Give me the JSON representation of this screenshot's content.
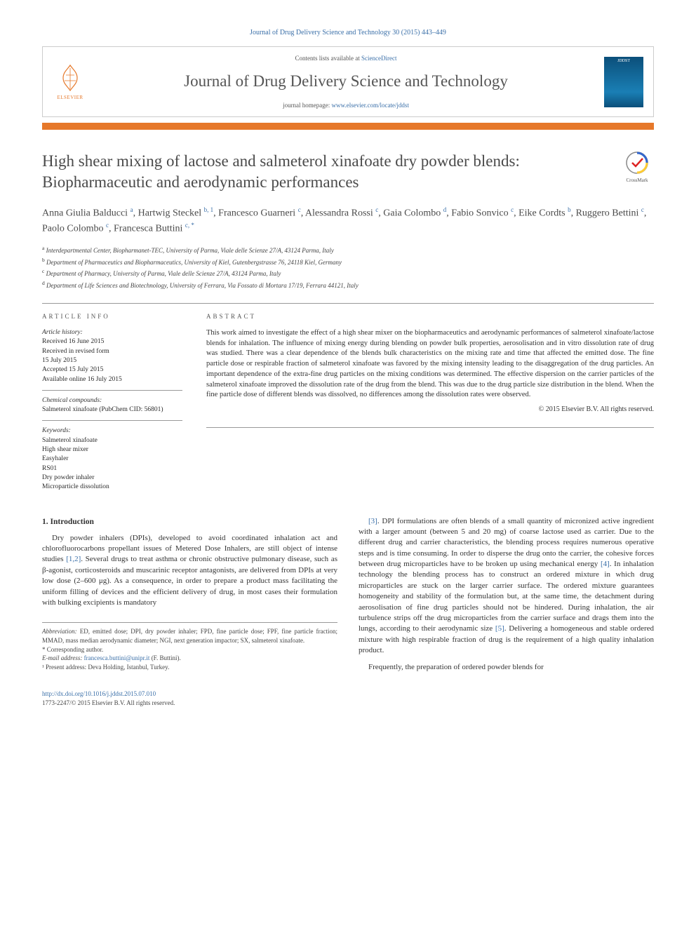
{
  "citation": "Journal of Drug Delivery Science and Technology 30 (2015) 443–449",
  "header": {
    "contents_prefix": "Contents lists available at ",
    "contents_link": "ScienceDirect",
    "journal_title": "Journal of Drug Delivery Science and Technology",
    "homepage_prefix": "journal homepage: ",
    "homepage_url": "www.elsevier.com/locate/jddst",
    "publisher": "ELSEVIER",
    "cover_label": "JDDST"
  },
  "crossmark_label": "CrossMark",
  "title": "High shear mixing of lactose and salmeterol xinafoate dry powder blends: Biopharmaceutic and aerodynamic performances",
  "authors_html": "Anna Giulia Balducci <sup>a</sup>, Hartwig Steckel <sup>b, 1</sup>, Francesco Guarneri <sup>c</sup>, Alessandra Rossi <sup>c</sup>, Gaia Colombo <sup>d</sup>, Fabio Sonvico <sup>c</sup>, Eike Cordts <sup>b</sup>, Ruggero Bettini <sup>c</sup>, Paolo Colombo <sup>c</sup>, Francesca Buttini <sup>c, *</sup>",
  "affiliations": [
    {
      "sup": "a",
      "text": "Interdepartmental Center, Biopharmanet-TEC, University of Parma, Viale delle Scienze 27/A, 43124 Parma, Italy"
    },
    {
      "sup": "b",
      "text": "Department of Pharmaceutics and Biopharmaceutics, University of Kiel, Gutenbergstrasse 76, 24118 Kiel, Germany"
    },
    {
      "sup": "c",
      "text": "Department of Pharmacy, University of Parma, Viale delle Scienze 27/A, 43124 Parma, Italy"
    },
    {
      "sup": "d",
      "text": "Department of Life Sciences and Biotechnology, University of Ferrara, Via Fossato di Mortara 17/19, Ferrara 44121, Italy"
    }
  ],
  "info": {
    "heading": "ARTICLE INFO",
    "history_title": "Article history:",
    "history": [
      "Received 16 June 2015",
      "Received in revised form",
      "15 July 2015",
      "Accepted 15 July 2015",
      "Available online 16 July 2015"
    ],
    "chem_title": "Chemical compounds:",
    "chem": "Salmeterol xinafoate (PubChem CID: 56801)",
    "keywords_title": "Keywords:",
    "keywords": [
      "Salmeterol xinafoate",
      "High shear mixer",
      "Easyhaler",
      "RS01",
      "Dry powder inhaler",
      "Microparticle dissolution"
    ]
  },
  "abstract": {
    "heading": "ABSTRACT",
    "text": "This work aimed to investigate the effect of a high shear mixer on the biopharmaceutics and aerodynamic performances of salmeterol xinafoate/lactose blends for inhalation. The influence of mixing energy during blending on powder bulk properties, aerosolisation and in vitro dissolution rate of drug was studied. There was a clear dependence of the blends bulk characteristics on the mixing rate and time that affected the emitted dose. The fine particle dose or respirable fraction of salmeterol xinafoate was favored by the mixing intensity leading to the disaggregation of the drug particles. An important dependence of the extra-fine drug particles on the mixing conditions was determined. The effective dispersion on the carrier particles of the salmeterol xinafoate improved the dissolution rate of the drug from the blend. This was due to the drug particle size distribution in the blend. When the fine particle dose of different blends was dissolved, no differences among the dissolution rates were observed.",
    "copyright": "© 2015 Elsevier B.V. All rights reserved."
  },
  "sections": {
    "intro_head": "1. Introduction",
    "col1_p1_a": "Dry powder inhalers (DPIs), developed to avoid coordinated inhalation act and chlorofluorocarbons propellant issues of Metered Dose Inhalers, are still object of intense studies ",
    "col1_p1_ref1": "[1,2]",
    "col1_p1_b": ". Several drugs to treat asthma or chronic obstructive pulmonary disease, such as β-agonist, corticosteroids and muscarinic receptor antagonists, are delivered from DPIs at very low dose (2–600 μg). As a consequence, in order to prepare a product mass facilitating the uniform filling of devices and the efficient delivery of drug, in most cases their formulation with bulking excipients is mandatory",
    "col2_ref3": "[3]",
    "col2_p1_a": ". DPI formulations are often blends of a small quantity of micronized active ingredient with a larger amount (between 5 and 20 mg) of coarse lactose used as carrier. Due to the different drug and carrier characteristics, the blending process requires numerous operative steps and is time consuming. In order to disperse the drug onto the carrier, the cohesive forces between drug microparticles have to be broken up using mechanical energy ",
    "col2_ref4": "[4]",
    "col2_p1_b": ". In inhalation technology the blending process has to construct an ordered mixture in which drug microparticles are stuck on the larger carrier surface. The ordered mixture guarantees homogeneity and stability of the formulation but, at the same time, the detachment during aerosolisation of fine drug particles should not be hindered. During inhalation, the air turbulence strips off the drug microparticles from the carrier surface and drags them into the lungs, according to their aerodynamic size ",
    "col2_ref5": "[5]",
    "col2_p1_c": ". Delivering a homogeneous and stable ordered mixture with high respirable fraction of drug is the requirement of a high quality inhalation product.",
    "col2_p2": "Frequently, the preparation of ordered powder blends for"
  },
  "footnotes": {
    "abbrev_label": "Abbreviation:",
    "abbrev": " ED, emitted dose; DPI, dry powder inhaler; FPD, fine particle dose; FPF, fine particle fraction; MMAD, mass median aerodynamic diameter; NGI, next generation impactor; SX, salmeterol xinafoate.",
    "corr": "* Corresponding author.",
    "email_label": "E-mail address: ",
    "email": "francesca.buttini@unipr.it",
    "email_suffix": " (F. Buttini).",
    "note1": "¹ Present address: Deva Holding, Istanbul, Turkey."
  },
  "bottom": {
    "doi": "http://dx.doi.org/10.1016/j.jddst.2015.07.010",
    "issn_line": "1773-2247/© 2015 Elsevier B.V. All rights reserved."
  },
  "colors": {
    "accent": "#e6782a",
    "link": "#3a6fa8"
  }
}
